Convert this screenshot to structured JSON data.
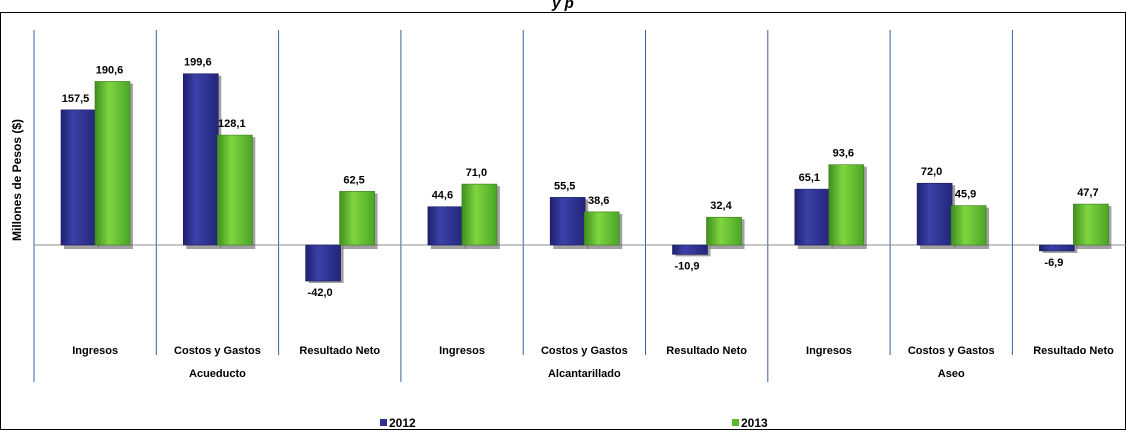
{
  "chart_data": {
    "type": "bar",
    "title": "y    p",
    "ylabel": "Millones de Pesos ($)",
    "groups": [
      {
        "name": "Acueducto",
        "categories": [
          "Ingresos",
          "Costos y Gastos",
          "Resultado Neto"
        ]
      },
      {
        "name": "Alcantarillado",
        "categories": [
          "Ingresos",
          "Costos y Gastos",
          "Resultado Neto"
        ]
      },
      {
        "name": "Aseo",
        "categories": [
          "Ingresos",
          "Costos y Gastos",
          "Resultado Neto"
        ]
      }
    ],
    "categories": [
      "Ingresos",
      "Costos y Gastos",
      "Resultado Neto",
      "Ingresos",
      "Costos y Gastos",
      "Resultado Neto",
      "Ingresos",
      "Costos y Gastos",
      "Resultado Neto"
    ],
    "series": [
      {
        "name": "2012",
        "color": "#2e3192",
        "values": [
          157.5,
          199.6,
          -42.0,
          44.6,
          55.5,
          -10.9,
          65.1,
          72.0,
          -6.9
        ],
        "labels": [
          "157,5",
          "199,6",
          "-42,0",
          "44,6",
          "55,5",
          "-10,9",
          "65,1",
          "72,0",
          "-6,9"
        ]
      },
      {
        "name": "2013",
        "color": "#5cb82e",
        "values": [
          190.6,
          128.1,
          62.5,
          71.0,
          38.6,
          32.4,
          93.6,
          45.9,
          47.7
        ],
        "labels": [
          "190,6",
          "128,1",
          "62,5",
          "71,0",
          "38,6",
          "32,4",
          "93,6",
          "45,9",
          "47,7"
        ]
      }
    ],
    "legend_position": "bottom",
    "grid": false
  }
}
